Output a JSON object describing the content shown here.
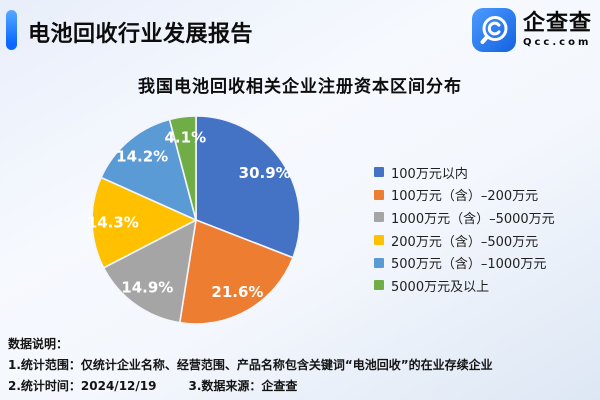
{
  "header": {
    "title": "电池回收行业发展报告",
    "logo": {
      "name": "企查查",
      "domain": "Qcc.com",
      "brand_color": "#1f7bf4"
    }
  },
  "chart_data": {
    "type": "pie",
    "title": "我国电池回收相关企业注册资本区间分布",
    "start_angle_deg": 0,
    "direction": "clockwise",
    "legend_position": "right",
    "value_suffix": "%",
    "slices": [
      {
        "label": "100万元以内",
        "value": 30.9,
        "color": "#4472C4"
      },
      {
        "label": "100万元（含）–200万元",
        "value": 21.6,
        "color": "#ED7D31"
      },
      {
        "label": "1000万元（含）–5000万元",
        "value": 14.9,
        "color": "#A5A5A5"
      },
      {
        "label": "200万元（含）–500万元",
        "value": 14.3,
        "color": "#FFC000"
      },
      {
        "label": "500万元（含）–1000万元",
        "value": 14.2,
        "color": "#5B9BD5"
      },
      {
        "label": "5000万元及以上",
        "value": 4.1,
        "color": "#70AD47"
      }
    ]
  },
  "footer": {
    "heading": "数据说明：",
    "line1": "1.统计范围：仅统计企业名称、经营范围、产品名称包含关键词“电池回收”的在业存续企业",
    "line2": "2.统计时间：2024/12/19",
    "line3": "3.数据来源：企查查"
  }
}
